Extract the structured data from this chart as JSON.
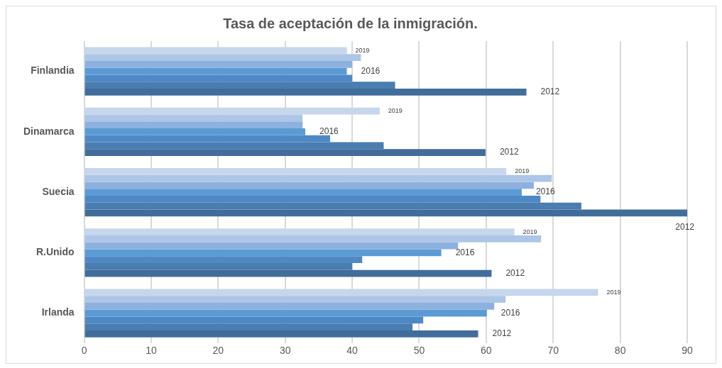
{
  "chart_data": {
    "type": "bar",
    "orientation": "horizontal",
    "title": "Tasa de aceptación de la inmigración.",
    "categories": [
      "Finlandia",
      "Dinamarca",
      "Suecia",
      "R.Unido",
      "Irlanda"
    ],
    "series": [
      {
        "name": "2019",
        "color": "#c6d6ec",
        "values": [
          39.2,
          44.1,
          63.0,
          64.2,
          76.7
        ]
      },
      {
        "color": "#adc6e7",
        "values": [
          41.3,
          32.6,
          69.8,
          68.2,
          62.9
        ]
      },
      {
        "color": "#8db1df",
        "values": [
          40.0,
          32.6,
          67.1,
          55.8,
          61.2
        ]
      },
      {
        "name": "2016",
        "color": "#5b9bd5",
        "values": [
          39.2,
          33.0,
          65.3,
          53.3,
          60.1
        ]
      },
      {
        "color": "#4f89c5",
        "values": [
          40.0,
          36.7,
          68.1,
          41.5,
          50.6
        ]
      },
      {
        "color": "#4a7db0",
        "values": [
          46.4,
          44.7,
          74.2,
          40.0,
          49.0
        ]
      },
      {
        "name": "2012",
        "color": "#416d9b",
        "values": [
          66.0,
          59.9,
          90.0,
          60.8,
          58.8
        ]
      }
    ],
    "xlim": [
      0,
      90
    ],
    "xticks": [
      0,
      10,
      20,
      30,
      40,
      50,
      60,
      70,
      80,
      90
    ],
    "grid": "x",
    "legend": false
  }
}
